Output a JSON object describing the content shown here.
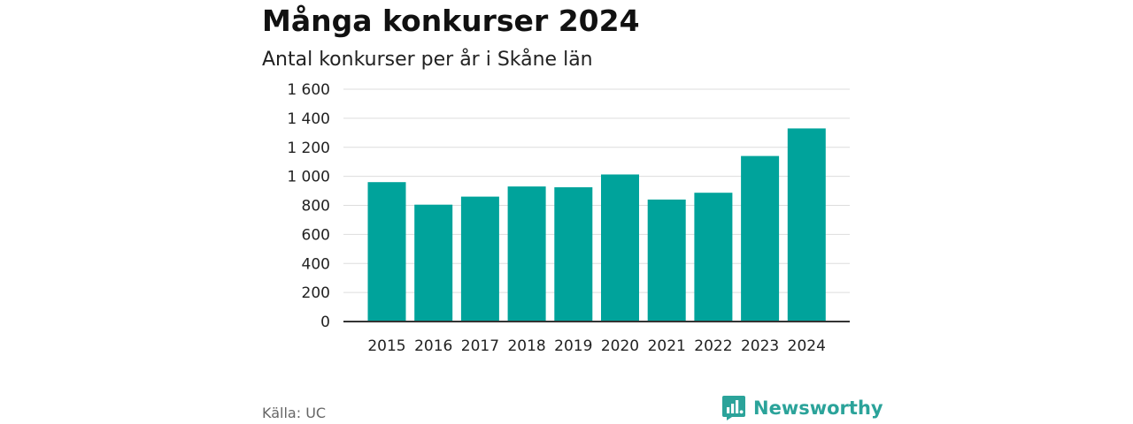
{
  "title": "Många konkurser 2024",
  "subtitle": "Antal konkurser per år i Skåne län",
  "source": "Källa: UC",
  "brand": {
    "name": "Newsworthy",
    "icon": "newsworthy-logo-icon"
  },
  "colors": {
    "bar": "#00a39b",
    "grid": "#dddddd",
    "axis": "#333333",
    "brand": "#2ba39a"
  },
  "chart_data": {
    "type": "bar",
    "categories": [
      "2015",
      "2016",
      "2017",
      "2018",
      "2019",
      "2020",
      "2021",
      "2022",
      "2023",
      "2024"
    ],
    "values": [
      960,
      805,
      860,
      930,
      925,
      1013,
      840,
      887,
      1140,
      1330
    ],
    "ylim": [
      0,
      1600
    ],
    "yticks": [
      0,
      200,
      400,
      600,
      800,
      1000,
      1200,
      1400,
      1600
    ],
    "ytick_labels": [
      "0",
      "200",
      "400",
      "600",
      "800",
      "1 000",
      "1 200",
      "1 400",
      "1 600"
    ],
    "xlabel": "",
    "ylabel": "",
    "grid": true
  }
}
